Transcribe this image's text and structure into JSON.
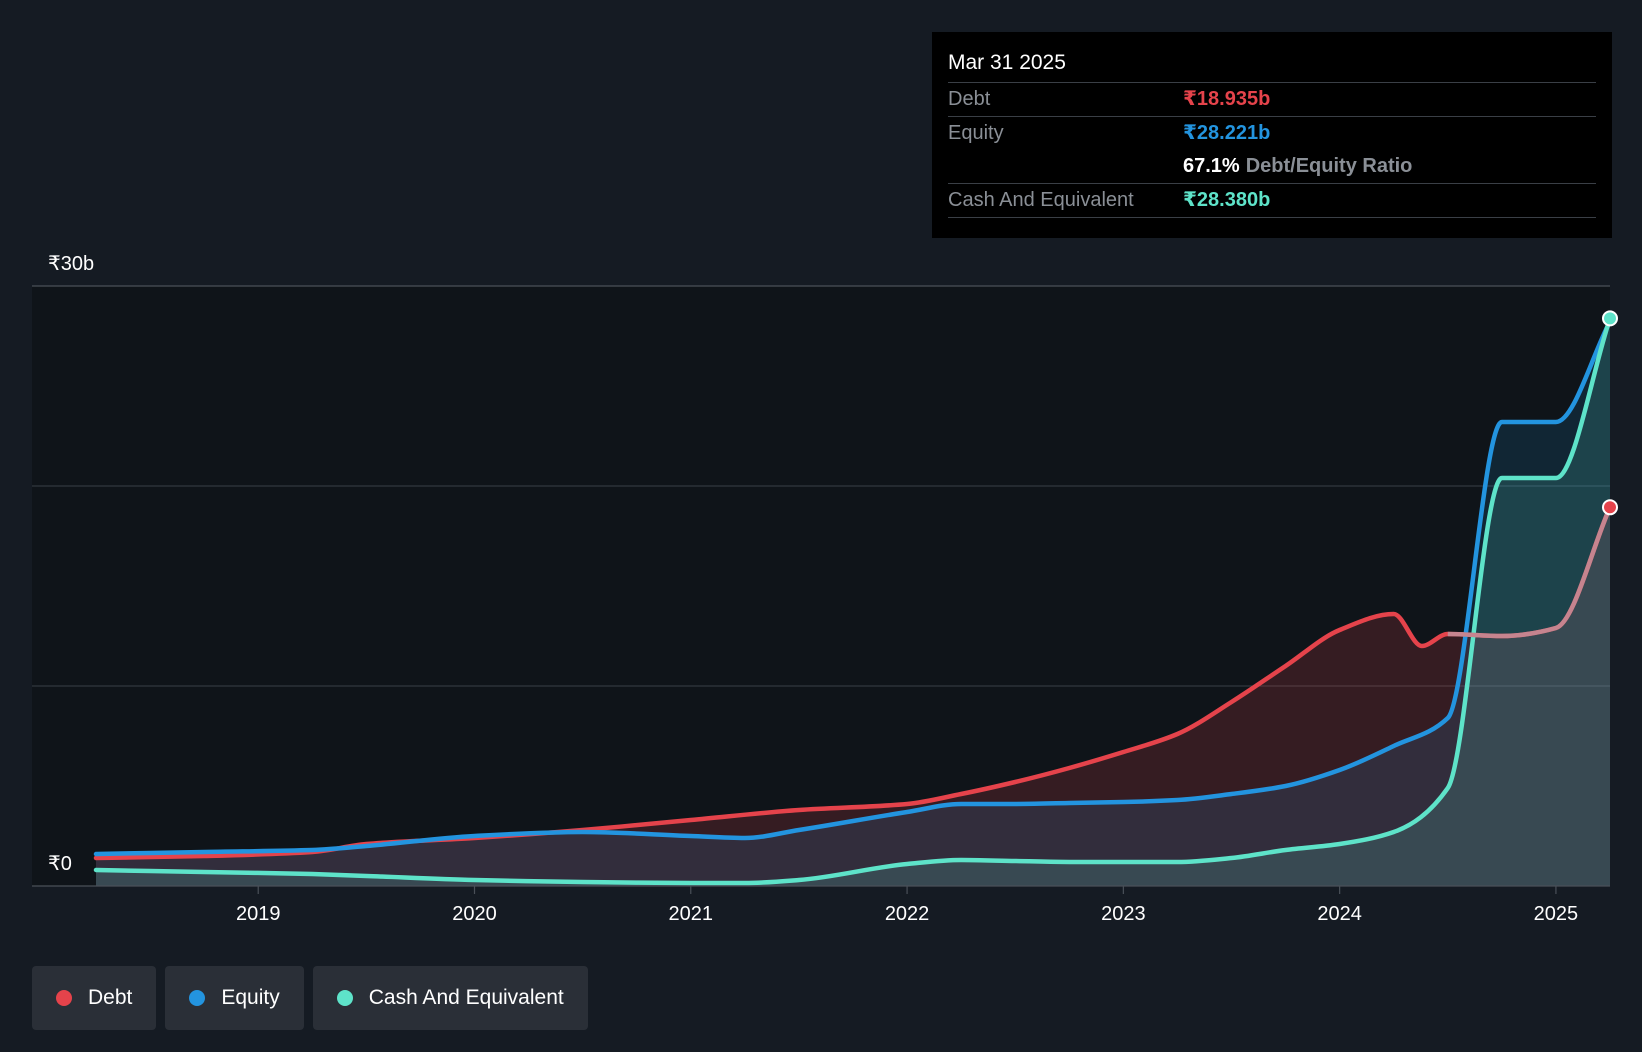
{
  "colors": {
    "debt": "#e5434b",
    "equity": "#2394df",
    "cash": "#5ee3c9",
    "background": "#151b23",
    "plot_background": "#0f1419",
    "grid": "#3a3f46"
  },
  "tooltip": {
    "date": "Mar 31 2025",
    "debt_label": "Debt",
    "debt_value": "₹18.935b",
    "equity_label": "Equity",
    "equity_value": "₹28.221b",
    "ratio_value": "67.1%",
    "ratio_label": "Debt/Equity Ratio",
    "cash_label": "Cash And Equivalent",
    "cash_value": "₹28.380b"
  },
  "legend": [
    {
      "label": "Debt",
      "color": "#e5434b"
    },
    {
      "label": "Equity",
      "color": "#2394df"
    },
    {
      "label": "Cash And Equivalent",
      "color": "#5ee3c9"
    }
  ],
  "chart_data": {
    "type": "area",
    "title": "",
    "xlabel": "",
    "ylabel": "",
    "unit": "₹b",
    "y_top_label": "₹30b",
    "y_zero_label": "₹0",
    "ylim": [
      0,
      30
    ],
    "xlim": [
      2018.25,
      2025.25
    ],
    "x_ticks": [
      {
        "x": 2019,
        "label": "2019"
      },
      {
        "x": 2020,
        "label": "2020"
      },
      {
        "x": 2021,
        "label": "2021"
      },
      {
        "x": 2022,
        "label": "2022"
      },
      {
        "x": 2023,
        "label": "2023"
      },
      {
        "x": 2024,
        "label": "2024"
      },
      {
        "x": 2025,
        "label": "2025"
      }
    ],
    "grid_values": [
      10,
      20
    ],
    "legend_position": "bottom-left",
    "series": [
      {
        "name": "Debt",
        "x": [
          2018.25,
          2018.75,
          2019.25,
          2019.5,
          2020.0,
          2020.5,
          2021.0,
          2021.5,
          2022.0,
          2022.25,
          2022.5,
          2022.75,
          2023.0,
          2023.25,
          2023.5,
          2023.75,
          2024.0,
          2024.25,
          2024.38,
          2024.5,
          2024.75,
          2025.0,
          2025.25
        ],
        "y": [
          1.4,
          1.5,
          1.7,
          2.1,
          2.4,
          2.8,
          3.3,
          3.8,
          4.1,
          4.6,
          5.2,
          5.9,
          6.7,
          7.6,
          9.2,
          11.0,
          12.8,
          13.6,
          12.0,
          12.6,
          12.5,
          12.9,
          18.935
        ]
      },
      {
        "name": "Equity",
        "x": [
          2018.25,
          2018.75,
          2019.25,
          2019.5,
          2020.0,
          2020.5,
          2021.0,
          2021.25,
          2021.5,
          2022.0,
          2022.25,
          2022.5,
          2022.75,
          2023.0,
          2023.25,
          2023.5,
          2023.75,
          2024.0,
          2024.25,
          2024.5,
          2024.75,
          2025.0,
          2025.25
        ],
        "y": [
          1.6,
          1.7,
          1.8,
          2.0,
          2.5,
          2.7,
          2.5,
          2.4,
          2.8,
          3.7,
          4.1,
          4.1,
          4.15,
          4.2,
          4.3,
          4.6,
          5.0,
          5.8,
          7.0,
          8.4,
          23.2,
          23.2,
          28.221
        ]
      },
      {
        "name": "Cash And Equivalent",
        "x": [
          2018.25,
          2018.75,
          2019.25,
          2019.5,
          2020.0,
          2020.5,
          2021.0,
          2021.25,
          2021.5,
          2022.0,
          2022.25,
          2022.5,
          2022.75,
          2023.0,
          2023.25,
          2023.5,
          2023.75,
          2024.0,
          2024.25,
          2024.5,
          2024.75,
          2025.0,
          2025.25
        ],
        "y": [
          0.8,
          0.7,
          0.6,
          0.5,
          0.3,
          0.2,
          0.15,
          0.15,
          0.3,
          1.1,
          1.3,
          1.25,
          1.2,
          1.2,
          1.2,
          1.4,
          1.8,
          2.1,
          2.7,
          4.9,
          20.4,
          20.4,
          28.38
        ]
      }
    ]
  }
}
